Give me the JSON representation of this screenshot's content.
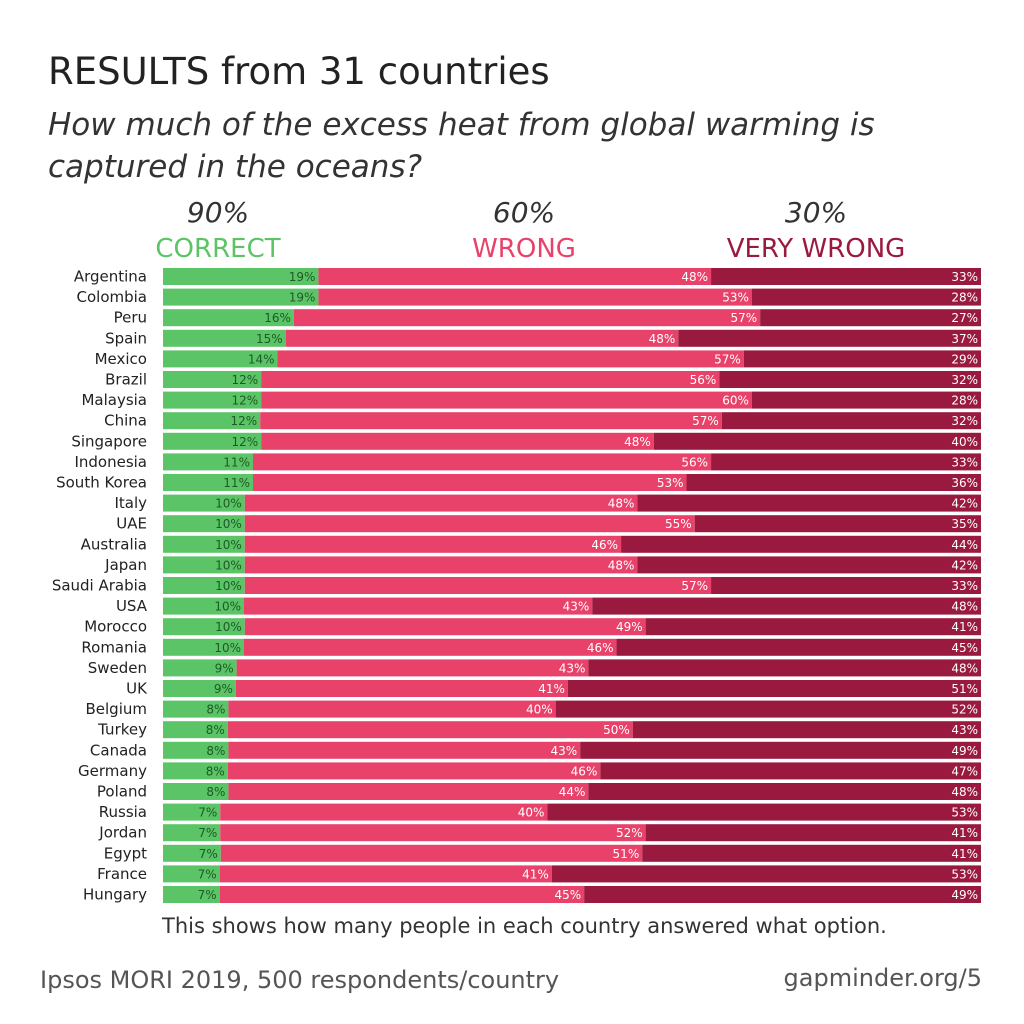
{
  "title": "RESULTS from 31 countries",
  "question": "How much of the excess heat from global warming is captured in the oceans?",
  "options": [
    {
      "value": "90%",
      "label": "CORRECT",
      "color": "#5bc466"
    },
    {
      "value": "60%",
      "label": "WRONG",
      "color": "#e8426a"
    },
    {
      "value": "30%",
      "label": "VERY WRONG",
      "color": "#9a1a3f"
    }
  ],
  "footnote": "This shows how many people in each country answered what option.",
  "source": "Ipsos MORI 2019, 500 respondents/country",
  "credit": "gapminder.org/5",
  "chart_data": {
    "type": "bar",
    "orientation": "horizontal",
    "stacked": true,
    "unit": "%",
    "categories": [
      "Argentina",
      "Colombia",
      "Peru",
      "Spain",
      "Mexico",
      "Brazil",
      "Malaysia",
      "China",
      "Singapore",
      "Indonesia",
      "South Korea",
      "Italy",
      "UAE",
      "Australia",
      "Japan",
      "Saudi Arabia",
      "USA",
      "Morocco",
      "Romania",
      "Sweden",
      "UK",
      "Belgium",
      "Turkey",
      "Canada",
      "Germany",
      "Poland",
      "Russia",
      "Jordan",
      "Egypt",
      "France",
      "Hungary"
    ],
    "series": [
      {
        "name": "CORRECT",
        "color": "#5bc466",
        "label_color": "#1e5a26",
        "values": [
          19,
          19,
          16,
          15,
          14,
          12,
          12,
          12,
          12,
          11,
          11,
          10,
          10,
          10,
          10,
          10,
          10,
          10,
          10,
          9,
          9,
          8,
          8,
          8,
          8,
          8,
          7,
          7,
          7,
          7,
          7
        ]
      },
      {
        "name": "WRONG",
        "color": "#e8426a",
        "label_color": "#ffffff",
        "values": [
          48,
          53,
          57,
          48,
          57,
          56,
          60,
          57,
          48,
          56,
          53,
          48,
          55,
          46,
          48,
          57,
          43,
          49,
          46,
          43,
          41,
          40,
          50,
          43,
          46,
          44,
          40,
          52,
          51,
          41,
          45
        ]
      },
      {
        "name": "VERY WRONG",
        "color": "#9a1a3f",
        "label_color": "#ffffff",
        "values": [
          33,
          28,
          27,
          37,
          29,
          32,
          28,
          32,
          40,
          33,
          36,
          42,
          35,
          44,
          42,
          33,
          48,
          41,
          45,
          48,
          51,
          52,
          43,
          49,
          47,
          48,
          53,
          41,
          41,
          53,
          49
        ]
      }
    ]
  }
}
